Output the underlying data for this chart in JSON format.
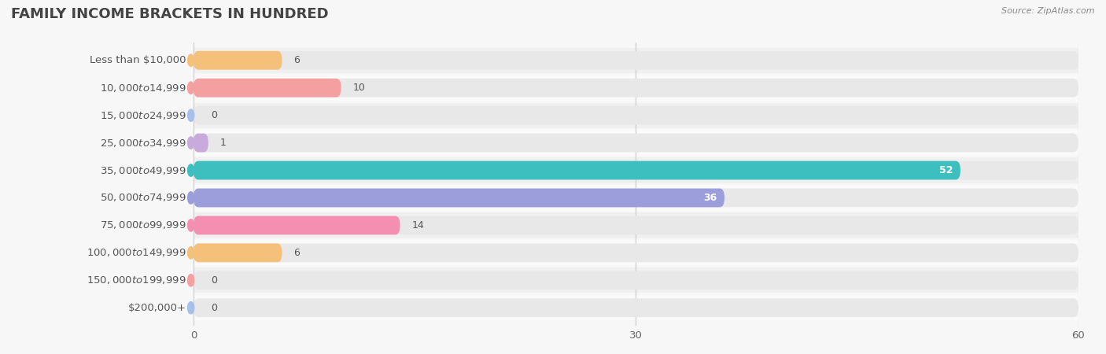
{
  "title": "FAMILY INCOME BRACKETS IN HUNDRED",
  "source": "Source: ZipAtlas.com",
  "categories": [
    "Less than $10,000",
    "$10,000 to $14,999",
    "$15,000 to $24,999",
    "$25,000 to $34,999",
    "$35,000 to $49,999",
    "$50,000 to $74,999",
    "$75,000 to $99,999",
    "$100,000 to $149,999",
    "$150,000 to $199,999",
    "$200,000+"
  ],
  "values": [
    6,
    10,
    0,
    1,
    52,
    36,
    14,
    6,
    0,
    0
  ],
  "bar_colors": [
    "#F5C07A",
    "#F4A0A0",
    "#A8BFEA",
    "#C9AADC",
    "#3DBFBF",
    "#9B9EDB",
    "#F48FB1",
    "#F5C07A",
    "#F4A0A0",
    "#A8BFEA"
  ],
  "xlim": [
    0,
    60
  ],
  "xticks": [
    0,
    30,
    60
  ],
  "background_color": "#f7f7f7",
  "bar_bg_color": "#e8e8e8",
  "row_bg_even": "#f0f0f0",
  "row_bg_odd": "#fafafa",
  "title_fontsize": 13,
  "label_fontsize": 9.5,
  "value_fontsize": 9
}
